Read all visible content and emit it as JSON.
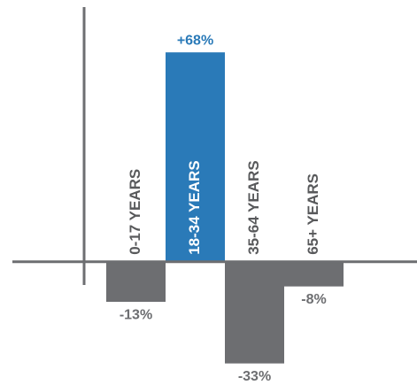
{
  "chart_data": {
    "type": "bar",
    "categories": [
      "0-17 YEARS",
      "18-34 YEARS",
      "35-64 YEARS",
      "65+ YEARS"
    ],
    "values": [
      -13,
      68,
      -33,
      -8
    ],
    "value_labels": [
      "-13%",
      "+68%",
      "-33%",
      "-8%"
    ],
    "colors": [
      "#6d6e71",
      "#2a7ab8",
      "#6d6e71",
      "#6d6e71"
    ],
    "ylim": [
      -40,
      85
    ]
  }
}
